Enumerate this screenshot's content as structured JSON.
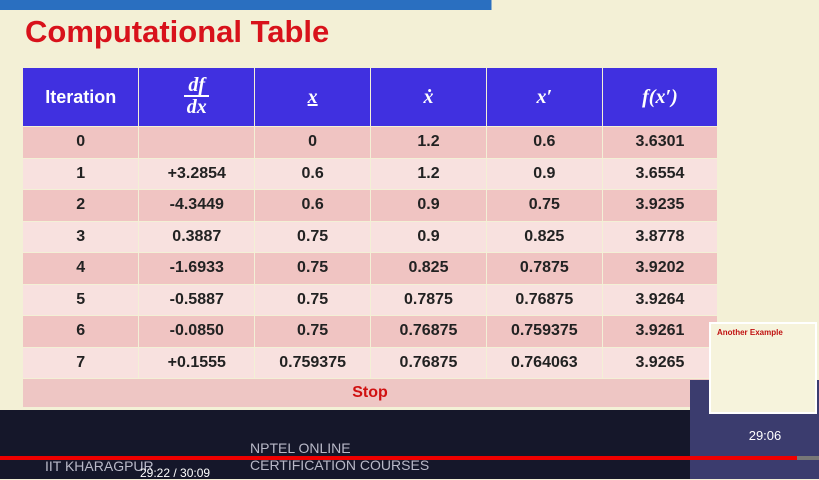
{
  "slide": {
    "title": "Computational Table",
    "table": {
      "headers": [
        "Iteration",
        {
          "numerator": "df",
          "denominator": "dx"
        },
        "x",
        "ẋ",
        "x′",
        "f(x′)"
      ],
      "rows": [
        [
          "0",
          null,
          "0",
          "1.2",
          "0.6",
          "3.6301"
        ],
        [
          "1",
          "+3.2854",
          "0.6",
          "1.2",
          "0.9",
          "3.6554"
        ],
        [
          "2",
          "-4.3449",
          "0.6",
          "0.9",
          "0.75",
          "3.9235"
        ],
        [
          "3",
          "0.3887",
          "0.75",
          "0.9",
          "0.825",
          "3.8778"
        ],
        [
          "4",
          "-1.6933",
          "0.75",
          "0.825",
          "0.7875",
          "3.9202"
        ],
        [
          "5",
          "-0.5887",
          "0.75",
          "0.7875",
          "0.76875",
          "3.9264"
        ],
        [
          "6",
          "-0.0850",
          "0.75",
          "0.76875",
          "0.759375",
          "3.9261"
        ],
        [
          "7",
          "+0.1555",
          "0.759375",
          "0.76875",
          "0.764063",
          "3.9265"
        ]
      ],
      "footer": "Stop"
    },
    "footer_left": "IIT KHARAGPUR",
    "footer_center": [
      "NPTEL ONLINE",
      "CERTIFICATION COURSES"
    ]
  },
  "player": {
    "time": "29:22 / 30:09",
    "preview": {
      "title": "Another Example",
      "time": "29:06"
    }
  }
}
